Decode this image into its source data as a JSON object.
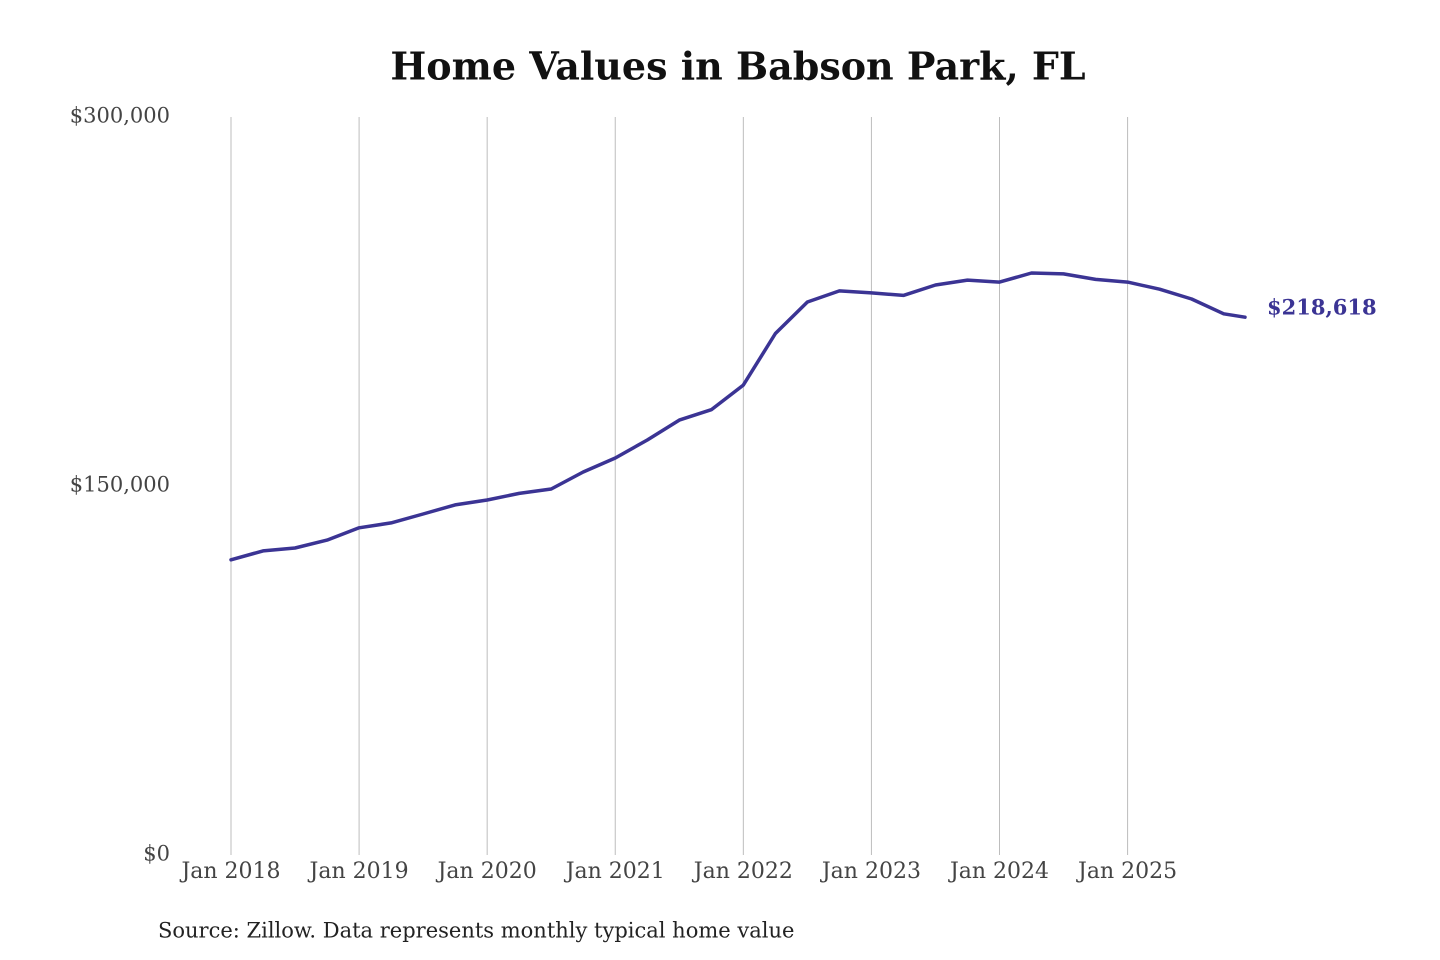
{
  "chart_data": {
    "type": "line",
    "title": "Home Values in Babson Park, FL",
    "source": "Source: Zillow. Data represents monthly typical home value",
    "x": [
      "2018-01",
      "2018-04",
      "2018-07",
      "2018-10",
      "2019-01",
      "2019-04",
      "2019-07",
      "2019-10",
      "2020-01",
      "2020-04",
      "2020-07",
      "2020-10",
      "2021-01",
      "2021-04",
      "2021-07",
      "2021-10",
      "2022-01",
      "2022-04",
      "2022-07",
      "2022-10",
      "2023-01",
      "2023-04",
      "2023-07",
      "2023-10",
      "2024-01",
      "2024-04",
      "2024-07",
      "2024-10",
      "2025-01",
      "2025-04",
      "2025-07",
      "2025-10",
      "2025-12"
    ],
    "series": [
      {
        "color": "#3b3494",
        "values": [
          120000,
          123600,
          124800,
          128000,
          133000,
          135000,
          138600,
          142300,
          144300,
          147000,
          148800,
          155700,
          161400,
          168700,
          176800,
          181000,
          191000,
          212000,
          224800,
          229300,
          228500,
          227500,
          231700,
          233700,
          232900,
          236600,
          236200,
          234000,
          232900,
          230000,
          226000,
          220000,
          218618
        ],
        "value_labels": [
          null,
          null,
          null,
          null,
          null,
          null,
          null,
          null,
          null,
          null,
          null,
          null,
          null,
          null,
          null,
          null,
          null,
          null,
          null,
          null,
          null,
          null,
          null,
          null,
          null,
          null,
          null,
          null,
          null,
          null,
          null,
          null,
          "$218,618"
        ]
      }
    ],
    "xlim": [
      "2018-01",
      "2025-12"
    ],
    "xticks": [
      {
        "value": "2018-01",
        "label": "Jan 2018"
      },
      {
        "value": "2019-01",
        "label": "Jan 2019"
      },
      {
        "value": "2020-01",
        "label": "Jan 2020"
      },
      {
        "value": "2021-01",
        "label": "Jan 2021"
      },
      {
        "value": "2022-01",
        "label": "Jan 2022"
      },
      {
        "value": "2023-01",
        "label": "Jan 2023"
      },
      {
        "value": "2024-01",
        "label": "Jan 2024"
      },
      {
        "value": "2025-01",
        "label": "Jan 2025"
      }
    ],
    "ylim": [
      0,
      300000
    ],
    "yticks": [
      {
        "value": 0,
        "label": "$0"
      },
      {
        "value": 150000,
        "label": "$150,000"
      },
      {
        "value": 300000,
        "label": "$300,000"
      }
    ],
    "grid": "x"
  }
}
